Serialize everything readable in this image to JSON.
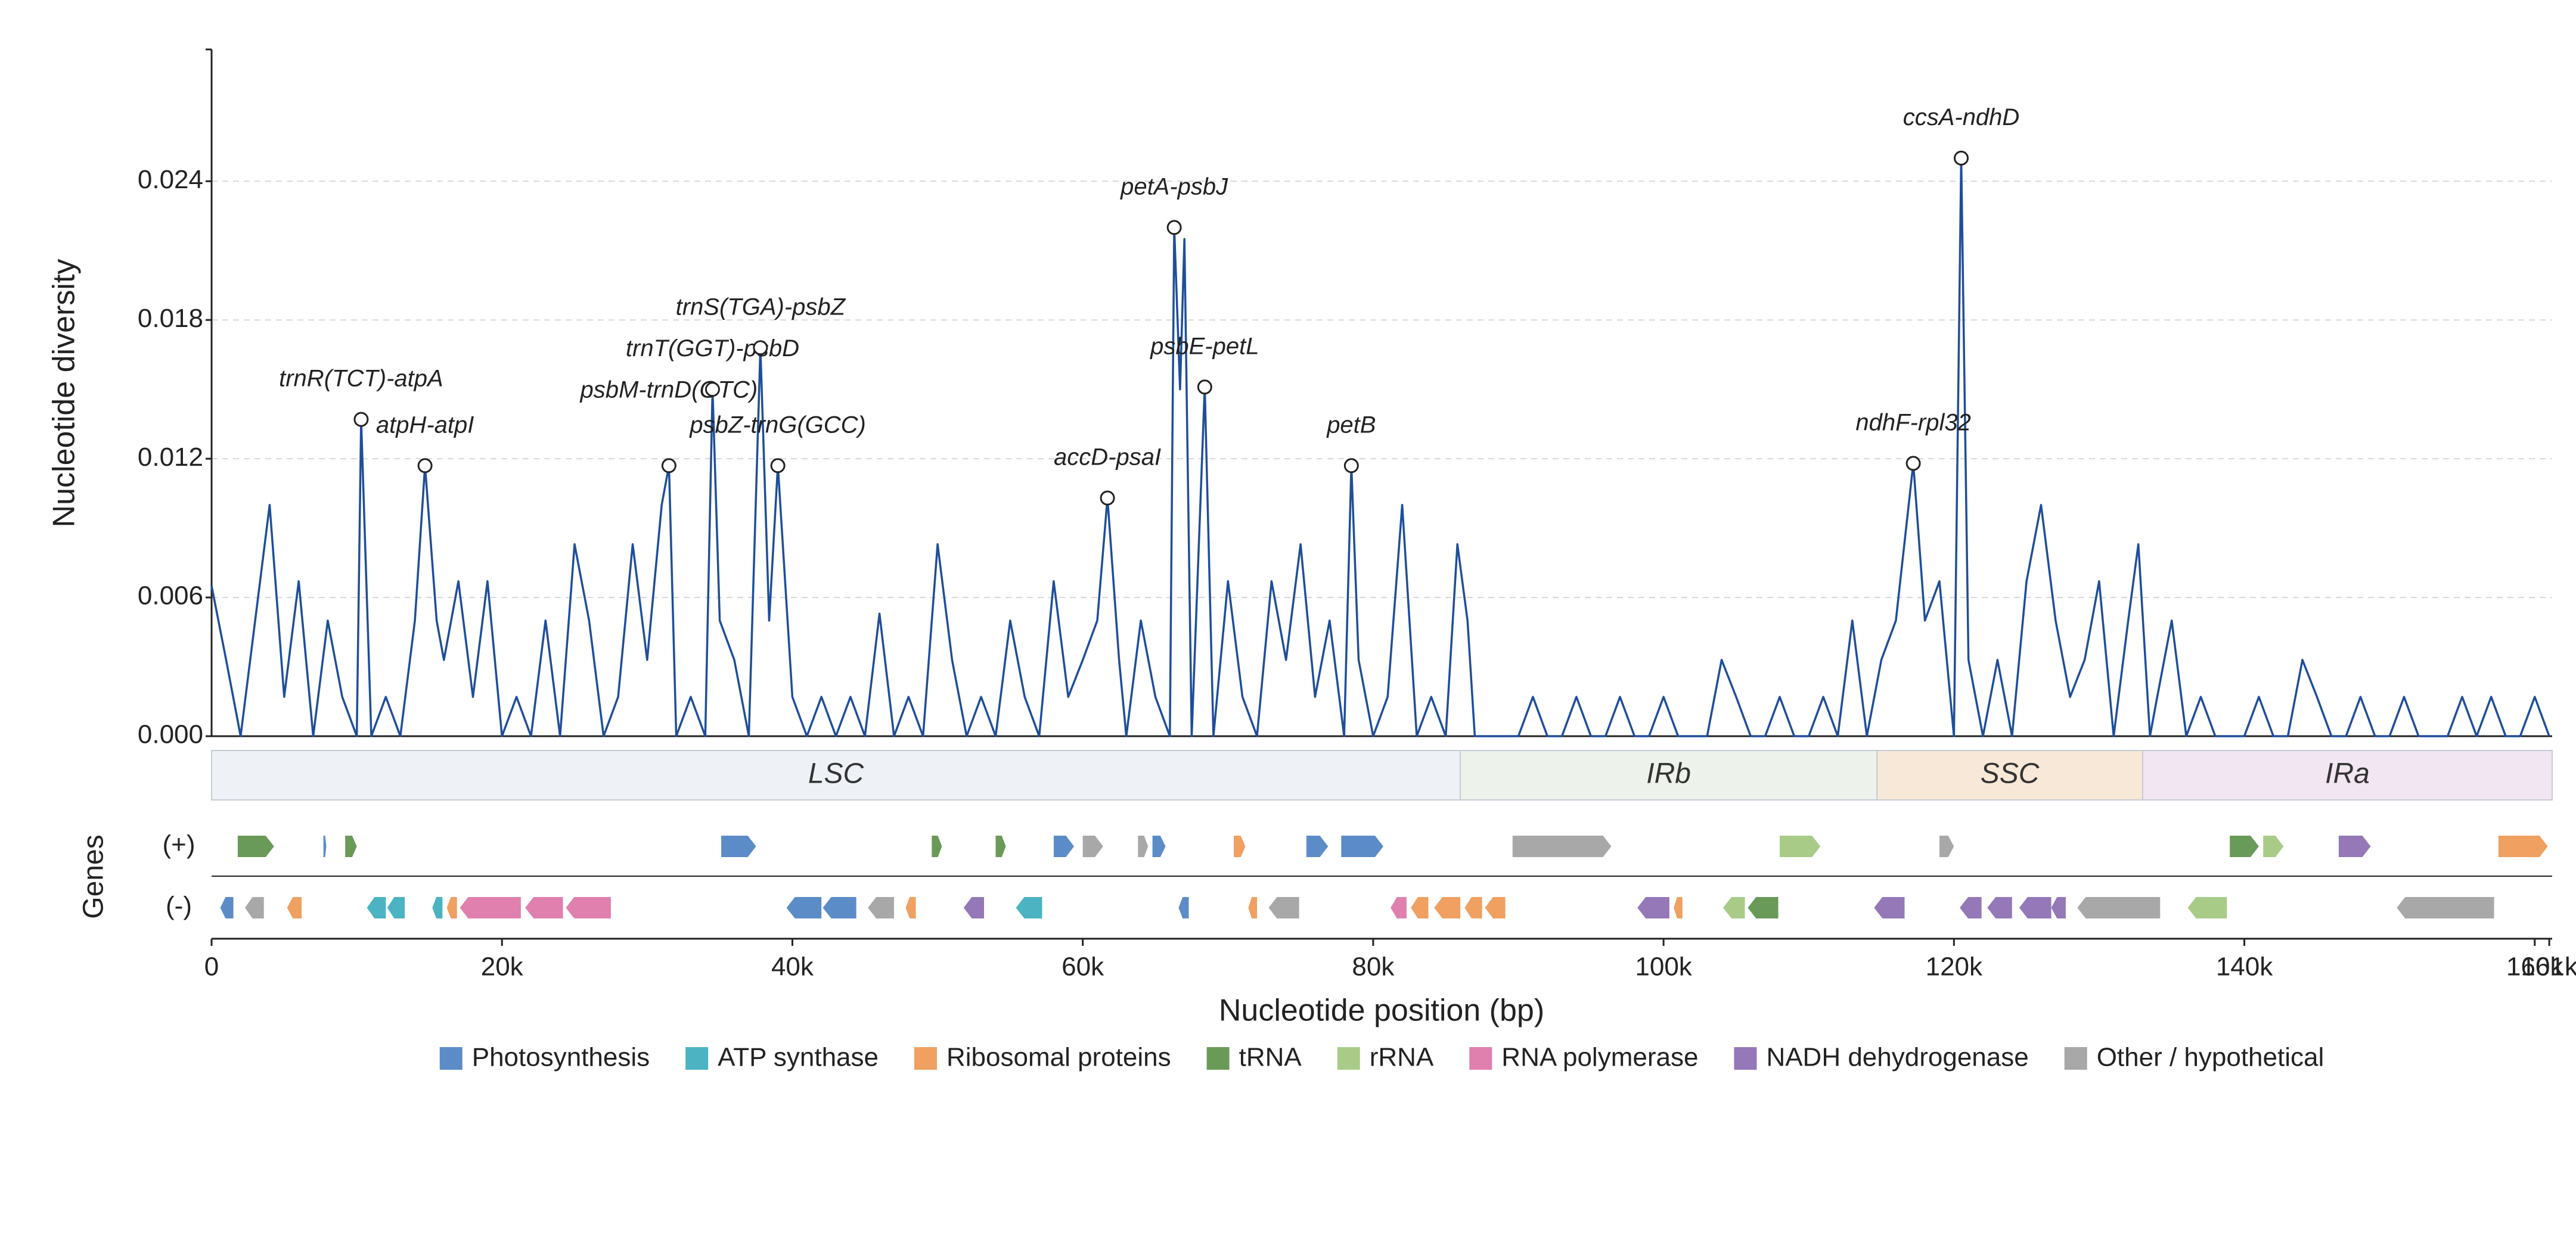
{
  "chart_data": {
    "type": "line",
    "y_label": "Nucleotide diversity",
    "x_label": "Nucleotide position (bp)",
    "genes_label": "Genes",
    "plus_label": "(+)",
    "minus_label": "(-)",
    "xlim": [
      0,
      161200
    ],
    "ylim": [
      0,
      0.0297
    ],
    "xticks": [
      0,
      {
        "value": 20000,
        "label": "20k"
      },
      {
        "value": 40000,
        "label": "40k"
      },
      {
        "value": 60000,
        "label": "60k"
      },
      {
        "value": 80000,
        "label": "80k"
      },
      {
        "value": 100000,
        "label": "100k"
      },
      {
        "value": 120000,
        "label": "120k"
      },
      {
        "value": 140000,
        "label": "140k"
      },
      {
        "value": 160000,
        "label": "160k"
      },
      {
        "value": 161000,
        "label": "161k"
      }
    ],
    "yticks": [
      {
        "value": 0,
        "label": "0.000"
      },
      {
        "value": 0.006,
        "label": "0.006"
      },
      {
        "value": 0.012,
        "label": "0.012"
      },
      {
        "value": 0.018,
        "label": "0.018"
      },
      {
        "value": 0.024,
        "label": "0.024"
      }
    ],
    "grid": true,
    "series": [
      {
        "name": "Nucleotide diversity",
        "color": "#1f4e9a",
        "x": [
          0,
          1000,
          2000,
          3000,
          4000,
          5000,
          6000,
          7000,
          8000,
          9000,
          10000,
          10300,
          11000,
          12000,
          13000,
          14000,
          14700,
          15500,
          16000,
          17000,
          18000,
          19000,
          20000,
          21000,
          22000,
          23000,
          24000,
          25000,
          26000,
          27000,
          28000,
          29000,
          30000,
          31000,
          31500,
          32000,
          33000,
          34000,
          34500,
          35000,
          36000,
          37000,
          37800,
          38400,
          39000,
          40000,
          41000,
          42000,
          43000,
          44000,
          45000,
          46000,
          47000,
          48000,
          49000,
          50000,
          51000,
          52000,
          53000,
          54000,
          55000,
          56000,
          57000,
          58000,
          59000,
          60000,
          61000,
          61700,
          62500,
          63000,
          64000,
          65000,
          66000,
          66300,
          66700,
          67000,
          67500,
          68400,
          69000,
          70000,
          71000,
          72000,
          73000,
          74000,
          75000,
          76000,
          77000,
          78000,
          78500,
          79000,
          80000,
          81000,
          82000,
          83000,
          84000,
          85000,
          85800,
          86500,
          87000,
          88000,
          89000,
          90000,
          91000,
          92000,
          93000,
          94000,
          95000,
          96000,
          97000,
          98000,
          99000,
          100000,
          101000,
          102000,
          103000,
          104000,
          105000,
          106000,
          107000,
          108000,
          109000,
          110000,
          111000,
          112000,
          113000,
          114000,
          115000,
          116000,
          117200,
          118000,
          119000,
          120000,
          120500,
          121000,
          122000,
          123000,
          124000,
          125000,
          126000,
          127000,
          128000,
          129000,
          130000,
          131000,
          132000,
          132700,
          133500,
          134000,
          135000,
          136000,
          137000,
          138000,
          139000,
          140000,
          141000,
          142000,
          143000,
          144000,
          145000,
          146000,
          147000,
          148000,
          149000,
          150000,
          151000,
          152000,
          153000,
          154000,
          155000,
          156000,
          157000,
          158000,
          159000,
          160000,
          161000
        ],
        "values": [
          0.0065,
          0.0033,
          0,
          0.005,
          0.01,
          0.0017,
          0.0067,
          0,
          0.005,
          0.0017,
          0,
          0.0137,
          0,
          0.0017,
          0,
          0.005,
          0.0117,
          0.005,
          0.0033,
          0.0067,
          0.0017,
          0.0067,
          0,
          0.0017,
          0,
          0.005,
          0,
          0.0083,
          0.005,
          0,
          0.0017,
          0.0083,
          0.0033,
          0.01,
          0.0117,
          0,
          0.0017,
          0,
          0.015,
          0.005,
          0.0033,
          0,
          0.0168,
          0.005,
          0.0117,
          0.0017,
          0,
          0.0017,
          0,
          0.0017,
          0,
          0.0053,
          0,
          0.0017,
          0,
          0.0083,
          0.0033,
          0,
          0.0017,
          0,
          0.005,
          0.0017,
          0,
          0.0067,
          0.0017,
          0.0033,
          0.005,
          0.0103,
          0.0033,
          0,
          0.005,
          0.0017,
          0,
          0.022,
          0.015,
          0.0215,
          0,
          0.0151,
          0,
          0.0067,
          0.0017,
          0,
          0.0067,
          0.0033,
          0.0083,
          0.0017,
          0.005,
          0,
          0.0117,
          0.0033,
          0,
          0.0017,
          0.01,
          0,
          0.0017,
          0,
          0.0083,
          0.005,
          0,
          0,
          0,
          0,
          0.0017,
          0,
          0,
          0.0017,
          0,
          0,
          0.0017,
          0,
          0,
          0.0017,
          0,
          0,
          0,
          0.0033,
          0.0017,
          0,
          0,
          0.0017,
          0,
          0,
          0.0017,
          0,
          0.005,
          0,
          0.0033,
          0.005,
          0.0118,
          0.005,
          0.0067,
          0,
          0.025,
          0.0033,
          0,
          0.0033,
          0,
          0.0067,
          0.01,
          0.005,
          0.0017,
          0.0033,
          0.0067,
          0,
          0.005,
          0.0083,
          0,
          0.0017,
          0.005,
          0,
          0.0017,
          0,
          0,
          0,
          0.0017,
          0,
          0,
          0.0033,
          0.0017,
          0,
          0,
          0.0017,
          0,
          0,
          0.0017,
          0,
          0,
          0,
          0.0017,
          0,
          0.0017,
          0,
          0,
          0.0017,
          0
        ]
      }
    ],
    "annotations": [
      {
        "text": "trnR(TCT)-atpA",
        "x": 10300,
        "y": 0.0137
      },
      {
        "text": "atpH-atpI",
        "x": 14700,
        "y": 0.0117
      },
      {
        "text": "psbM-trnD(GTC)",
        "x": 31500,
        "y": 0.0117
      },
      {
        "text": "trnT(GGT)-psbD",
        "x": 34500,
        "y": 0.015
      },
      {
        "text": "trnS(TGA)-psbZ",
        "x": 37800,
        "y": 0.0168
      },
      {
        "text": "psbZ-trnG(GCC)",
        "x": 39000,
        "y": 0.0117
      },
      {
        "text": "accD-psaI",
        "x": 61700,
        "y": 0.0103
      },
      {
        "text": "petA-psbJ",
        "x": 66300,
        "y": 0.022
      },
      {
        "text": "psbE-petL",
        "x": 68400,
        "y": 0.0151
      },
      {
        "text": "petB",
        "x": 78500,
        "y": 0.0117
      },
      {
        "text": "ndhF-rpl32",
        "x": 117200,
        "y": 0.0118
      },
      {
        "text": "ccsA-ndhD",
        "x": 120500,
        "y": 0.025
      }
    ],
    "regions": [
      {
        "name": "LSC",
        "start": 0,
        "end": 86000,
        "color": "#eef2f6"
      },
      {
        "name": "IRb",
        "start": 86000,
        "end": 114700,
        "color": "#edf3ea"
      },
      {
        "name": "SSC",
        "start": 114700,
        "end": 133000,
        "color": "#f8e8d8"
      },
      {
        "name": "IRa",
        "start": 133000,
        "end": 161200,
        "color": "#f1e6f1"
      }
    ],
    "legend": [
      {
        "name": "Photosynthesis",
        "color": "#5b8cc8"
      },
      {
        "name": "ATP synthase",
        "color": "#4bb3c2"
      },
      {
        "name": "Ribosomal proteins",
        "color": "#f0a060"
      },
      {
        "name": "tRNA",
        "color": "#6a9a58"
      },
      {
        "name": "rRNA",
        "color": "#a8cc88"
      },
      {
        "name": "RNA polymerase",
        "color": "#e080ae"
      },
      {
        "name": "NADH dehydrogenase",
        "color": "#9478b8"
      },
      {
        "name": "Other / hypothetical",
        "color": "#a8a8a8"
      }
    ],
    "genes": [
      {
        "start": 1800,
        "end": 4300,
        "strand": "+",
        "group": "tRNA"
      },
      {
        "start": 7700,
        "end": 7900,
        "strand": "+",
        "group": "Photosynthesis"
      },
      {
        "start": 9200,
        "end": 10000,
        "strand": "+",
        "group": "tRNA"
      },
      {
        "start": 35100,
        "end": 37500,
        "strand": "+",
        "group": "Photosynthesis"
      },
      {
        "start": 49600,
        "end": 50300,
        "strand": "+",
        "group": "tRNA"
      },
      {
        "start": 54000,
        "end": 54700,
        "strand": "+",
        "group": "tRNA"
      },
      {
        "start": 58000,
        "end": 59400,
        "strand": "+",
        "group": "Photosynthesis"
      },
      {
        "start": 60000,
        "end": 61400,
        "strand": "+",
        "group": "Other / hypothetical"
      },
      {
        "start": 63800,
        "end": 64500,
        "strand": "+",
        "group": "Other / hypothetical"
      },
      {
        "start": 64800,
        "end": 65700,
        "strand": "+",
        "group": "Photosynthesis"
      },
      {
        "start": 70400,
        "end": 71200,
        "strand": "+",
        "group": "Ribosomal proteins"
      },
      {
        "start": 75400,
        "end": 76900,
        "strand": "+",
        "group": "Photosynthesis"
      },
      {
        "start": 77800,
        "end": 80700,
        "strand": "+",
        "group": "Photosynthesis"
      },
      {
        "start": 89600,
        "end": 96400,
        "strand": "+",
        "group": "Other / hypothetical"
      },
      {
        "start": 108000,
        "end": 110800,
        "strand": "+",
        "group": "rRNA"
      },
      {
        "start": 119000,
        "end": 120000,
        "strand": "+",
        "group": "Other / hypothetical"
      },
      {
        "start": 139000,
        "end": 141000,
        "strand": "+",
        "group": "tRNA"
      },
      {
        "start": 141300,
        "end": 142700,
        "strand": "+",
        "group": "rRNA"
      },
      {
        "start": 146500,
        "end": 148700,
        "strand": "+",
        "group": "NADH dehydrogenase"
      },
      {
        "start": 157500,
        "end": 160900,
        "strand": "+",
        "group": "Ribosomal proteins"
      },
      {
        "start": 600,
        "end": 1500,
        "strand": "-",
        "group": "Photosynthesis"
      },
      {
        "start": 2300,
        "end": 3600,
        "strand": "-",
        "group": "Other / hypothetical"
      },
      {
        "start": 5200,
        "end": 6200,
        "strand": "-",
        "group": "Ribosomal proteins"
      },
      {
        "start": 10700,
        "end": 12000,
        "strand": "-",
        "group": "ATP synthase"
      },
      {
        "start": 12100,
        "end": 13300,
        "strand": "-",
        "group": "ATP synthase"
      },
      {
        "start": 15200,
        "end": 15900,
        "strand": "-",
        "group": "ATP synthase"
      },
      {
        "start": 16200,
        "end": 16900,
        "strand": "-",
        "group": "Ribosomal proteins"
      },
      {
        "start": 17100,
        "end": 21300,
        "strand": "-",
        "group": "RNA polymerase"
      },
      {
        "start": 21600,
        "end": 24200,
        "strand": "-",
        "group": "RNA polymerase"
      },
      {
        "start": 24400,
        "end": 27500,
        "strand": "-",
        "group": "RNA polymerase"
      },
      {
        "start": 39600,
        "end": 42000,
        "strand": "-",
        "group": "Photosynthesis"
      },
      {
        "start": 42100,
        "end": 44400,
        "strand": "-",
        "group": "Photosynthesis"
      },
      {
        "start": 45200,
        "end": 47000,
        "strand": "-",
        "group": "Other / hypothetical"
      },
      {
        "start": 47800,
        "end": 48500,
        "strand": "-",
        "group": "Ribosomal proteins"
      },
      {
        "start": 51800,
        "end": 53200,
        "strand": "-",
        "group": "NADH dehydrogenase"
      },
      {
        "start": 55400,
        "end": 57200,
        "strand": "-",
        "group": "ATP synthase"
      },
      {
        "start": 66600,
        "end": 67300,
        "strand": "-",
        "group": "Photosynthesis"
      },
      {
        "start": 71400,
        "end": 72000,
        "strand": "-",
        "group": "Ribosomal proteins"
      },
      {
        "start": 72800,
        "end": 74900,
        "strand": "-",
        "group": "Other / hypothetical"
      },
      {
        "start": 81200,
        "end": 82300,
        "strand": "-",
        "group": "RNA polymerase"
      },
      {
        "start": 82600,
        "end": 83800,
        "strand": "-",
        "group": "Ribosomal proteins"
      },
      {
        "start": 84200,
        "end": 86000,
        "strand": "-",
        "group": "Ribosomal proteins"
      },
      {
        "start": 86300,
        "end": 87500,
        "strand": "-",
        "group": "Ribosomal proteins"
      },
      {
        "start": 87700,
        "end": 89100,
        "strand": "-",
        "group": "Ribosomal proteins"
      },
      {
        "start": 98200,
        "end": 100400,
        "strand": "-",
        "group": "NADH dehydrogenase"
      },
      {
        "start": 100700,
        "end": 101300,
        "strand": "-",
        "group": "Ribosomal proteins"
      },
      {
        "start": 104100,
        "end": 105600,
        "strand": "-",
        "group": "rRNA"
      },
      {
        "start": 105800,
        "end": 107900,
        "strand": "-",
        "group": "tRNA"
      },
      {
        "start": 114500,
        "end": 116600,
        "strand": "-",
        "group": "NADH dehydrogenase"
      },
      {
        "start": 120400,
        "end": 121900,
        "strand": "-",
        "group": "NADH dehydrogenase"
      },
      {
        "start": 122300,
        "end": 124000,
        "strand": "-",
        "group": "NADH dehydrogenase"
      },
      {
        "start": 124500,
        "end": 126700,
        "strand": "-",
        "group": "NADH dehydrogenase"
      },
      {
        "start": 126700,
        "end": 127700,
        "strand": "-",
        "group": "NADH dehydrogenase"
      },
      {
        "start": 128500,
        "end": 134200,
        "strand": "-",
        "group": "Other / hypothetical"
      },
      {
        "start": 136100,
        "end": 138800,
        "strand": "-",
        "group": "rRNA"
      },
      {
        "start": 150500,
        "end": 157200,
        "strand": "-",
        "group": "Other / hypothetical"
      }
    ]
  }
}
